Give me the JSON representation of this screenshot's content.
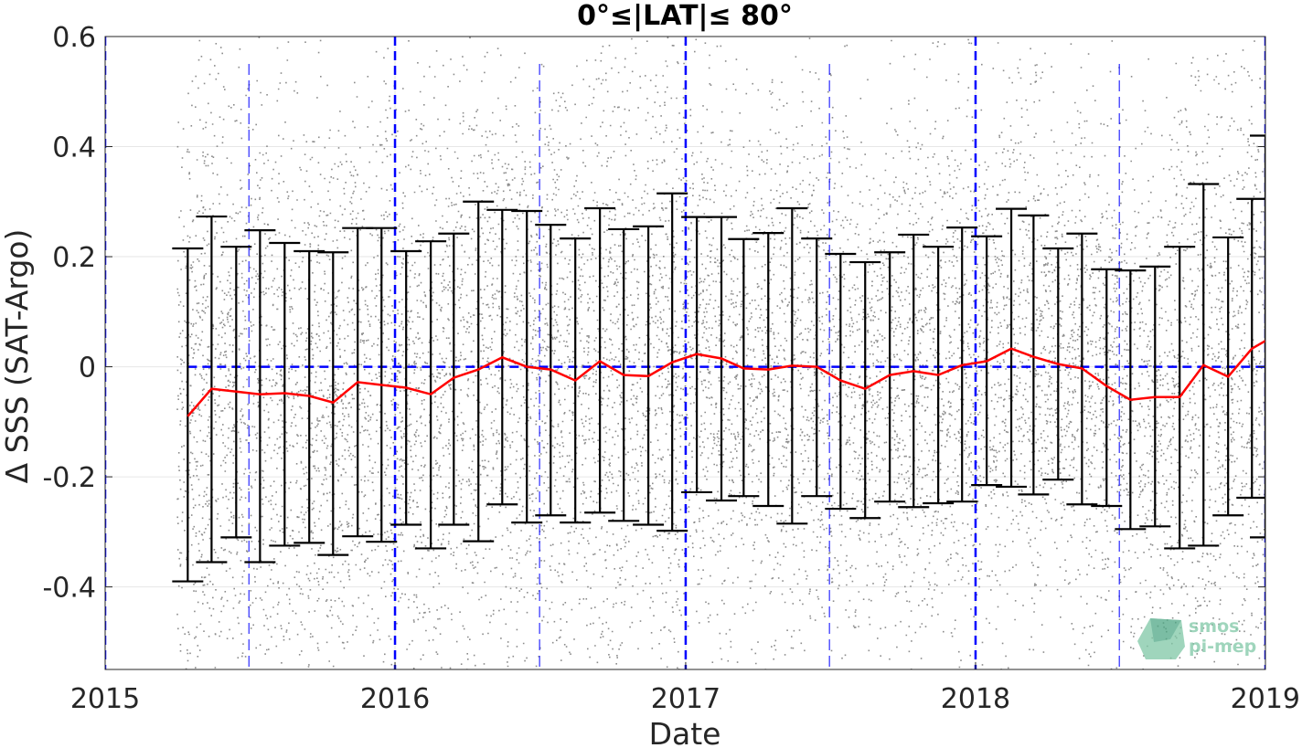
{
  "chart_data": {
    "type": "scatter",
    "title": "0°≤|LAT|≤ 80°",
    "xlabel": "Date",
    "ylabel": "Δ SSS (SAT-Argo)",
    "xlim": [
      "2015-01-01",
      "2019-01-01"
    ],
    "ylim": [
      -0.55,
      0.6
    ],
    "xticks": [
      {
        "value": "2015-01-01",
        "label": "2015"
      },
      {
        "value": "2016-01-01",
        "label": "2016"
      },
      {
        "value": "2017-01-01",
        "label": "2017"
      },
      {
        "value": "2018-01-01",
        "label": "2018"
      },
      {
        "value": "2019-01-01",
        "label": "2019"
      }
    ],
    "yticks": [
      {
        "value": 0.6,
        "label": "0.6"
      },
      {
        "value": 0.4,
        "label": "0.4"
      },
      {
        "value": 0.2,
        "label": "0.2"
      },
      {
        "value": 0,
        "label": "0"
      },
      {
        "value": -0.2,
        "label": "-0.2"
      },
      {
        "value": -0.4,
        "label": "-0.4"
      }
    ],
    "grid": true,
    "scatter_start": "2015-04-01",
    "scatter_color": "#808080",
    "series": [
      {
        "type": "line",
        "color": "#ff0000",
        "dates": [
          "2015-04-15",
          "2015-05-15",
          "2015-06-15",
          "2015-07-15",
          "2015-08-15",
          "2015-09-15",
          "2015-10-15",
          "2015-11-15",
          "2015-12-15",
          "2016-01-15",
          "2016-02-15",
          "2016-03-15",
          "2016-04-15",
          "2016-05-15",
          "2016-06-15",
          "2016-07-15",
          "2016-08-15",
          "2016-09-15",
          "2016-10-15",
          "2016-11-15",
          "2016-12-15",
          "2017-01-15",
          "2017-02-15",
          "2017-03-15",
          "2017-04-15",
          "2017-05-15",
          "2017-06-15",
          "2017-07-15",
          "2017-08-15",
          "2017-09-15",
          "2017-10-15",
          "2017-11-15",
          "2017-12-15",
          "2018-01-15",
          "2018-02-15",
          "2018-03-15",
          "2018-04-15",
          "2018-05-15",
          "2018-06-15",
          "2018-07-15",
          "2018-08-15",
          "2018-09-15",
          "2018-10-15",
          "2018-11-15",
          "2018-12-15",
          "2019-01-01"
        ],
        "mean": [
          -0.09,
          -0.04,
          -0.045,
          -0.05,
          -0.048,
          -0.053,
          -0.065,
          -0.028,
          -0.033,
          -0.038,
          -0.05,
          -0.02,
          -0.005,
          0.017,
          0.0,
          -0.005,
          -0.025,
          0.01,
          -0.015,
          -0.017,
          0.008,
          0.023,
          0.015,
          -0.003,
          -0.005,
          0.002,
          0.0,
          -0.025,
          -0.04,
          -0.015,
          -0.008,
          -0.015,
          0.003,
          0.01,
          0.033,
          0.018,
          0.005,
          -0.003,
          -0.035,
          -0.06,
          -0.055,
          -0.055,
          0.003,
          -0.018,
          0.033,
          0.047
        ],
        "upper": [
          0.215,
          0.273,
          0.218,
          0.248,
          0.225,
          0.21,
          0.208,
          0.252,
          0.252,
          0.21,
          0.228,
          0.242,
          0.3,
          0.285,
          0.283,
          0.258,
          0.233,
          0.288,
          0.25,
          0.255,
          0.315,
          0.272,
          0.272,
          0.232,
          0.243,
          0.288,
          0.233,
          0.205,
          0.19,
          0.208,
          0.24,
          0.218,
          0.253,
          0.237,
          0.287,
          0.275,
          0.215,
          0.242,
          0.177,
          0.175,
          0.182,
          0.218,
          0.332,
          0.235,
          0.305,
          0.42
        ],
        "lower": [
          -0.39,
          -0.355,
          -0.31,
          -0.355,
          -0.325,
          -0.32,
          -0.342,
          -0.308,
          -0.318,
          -0.287,
          -0.33,
          -0.287,
          -0.317,
          -0.25,
          -0.283,
          -0.27,
          -0.283,
          -0.265,
          -0.28,
          -0.287,
          -0.298,
          -0.228,
          -0.243,
          -0.235,
          -0.253,
          -0.285,
          -0.235,
          -0.258,
          -0.275,
          -0.245,
          -0.255,
          -0.248,
          -0.245,
          -0.215,
          -0.218,
          -0.232,
          -0.205,
          -0.25,
          -0.253,
          -0.295,
          -0.29,
          -0.33,
          -0.325,
          -0.27,
          -0.238,
          -0.31
        ]
      }
    ],
    "reference_lines": {
      "color": "#0000ff",
      "zero_line": 0,
      "zero_line_start": "2015-04-15",
      "year_lines": [
        "2015-01-01",
        "2016-01-01",
        "2017-01-01",
        "2018-01-01",
        "2019-01-01"
      ],
      "mid_year_lines": [
        "2015-07-01",
        "2016-07-01",
        "2017-07-01",
        "2018-07-01"
      ]
    }
  },
  "watermark": {
    "line1": "smos",
    "line2": "pi-mep"
  }
}
